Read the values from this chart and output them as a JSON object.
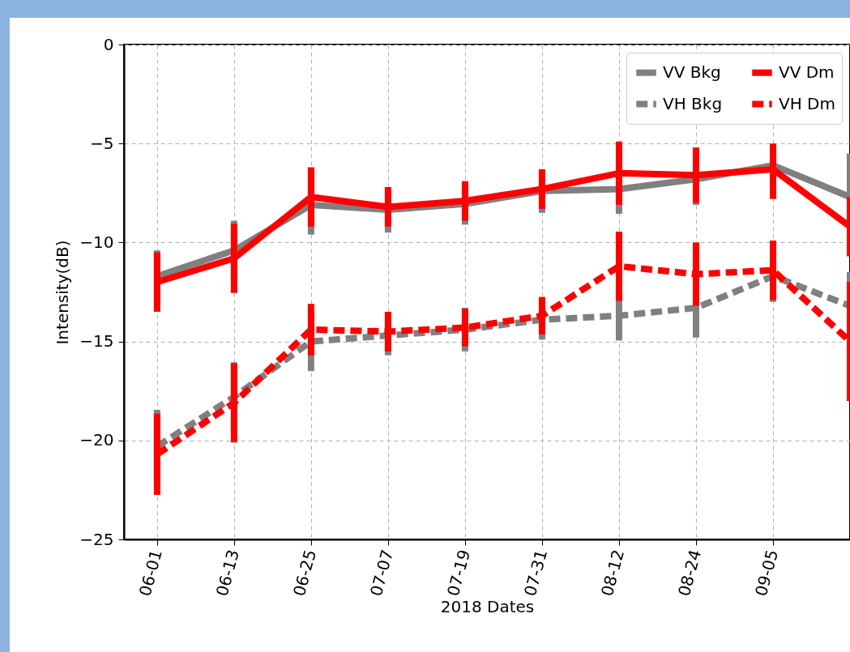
{
  "chart_data": {
    "type": "line",
    "xlabel": "2018 Dates",
    "ylabel": "Intensity(dB)",
    "categories": [
      "06-01",
      "06-13",
      "06-25",
      "07-07",
      "07-19",
      "07-31",
      "08-12",
      "08-24",
      "09-05",
      null
    ],
    "series": [
      {
        "name": "VV Bkg",
        "color": "#808080",
        "line_style": "solid",
        "values": [
          -11.7,
          -10.4,
          -8.1,
          -8.35,
          -8.05,
          -7.4,
          -7.3,
          -6.8,
          -6.1,
          -7.7
        ],
        "errors": [
          1.3,
          1.5,
          1.5,
          1.15,
          1.05,
          1.1,
          1.25,
          [
            -8.1,
            -6.8
          ],
          null,
          2.2
        ]
      },
      {
        "name": "VH Bkg",
        "color": "#808080",
        "line_style": "dashed",
        "values": [
          -20.3,
          -17.8,
          -15.0,
          -14.7,
          -14.4,
          -13.9,
          -13.7,
          -13.3,
          -11.7,
          -13.2
        ],
        "errors": [
          1.85,
          1.75,
          1.5,
          1.0,
          1.1,
          1.0,
          1.25,
          1.5,
          1.3,
          1.7
        ]
      },
      {
        "name": "VV Dm",
        "color": "#ff0000",
        "line_style": "solid",
        "values": [
          -12.0,
          -10.8,
          -7.7,
          -8.2,
          -7.9,
          -7.3,
          -6.5,
          -6.6,
          -6.3,
          -9.2
        ],
        "errors": [
          1.5,
          1.75,
          1.5,
          1.0,
          1.0,
          1.0,
          1.6,
          1.4,
          [
            -7.8,
            -5.0
          ],
          1.5
        ]
      },
      {
        "name": "VH Dm",
        "color": "#ff0000",
        "line_style": "dashed",
        "values": [
          -20.7,
          -18.1,
          -14.4,
          -14.5,
          -14.3,
          -13.7,
          -11.2,
          -11.6,
          -11.4,
          -15.0
        ],
        "errors": [
          2.05,
          2.0,
          1.3,
          1.0,
          0.95,
          0.95,
          1.75,
          1.6,
          1.5,
          3.0
        ]
      }
    ],
    "ylim": [
      -25,
      0
    ],
    "yticks": [
      -25,
      -20,
      -15,
      -10,
      -5,
      0
    ],
    "grid": true,
    "legend": "top right",
    "marker": "none"
  }
}
